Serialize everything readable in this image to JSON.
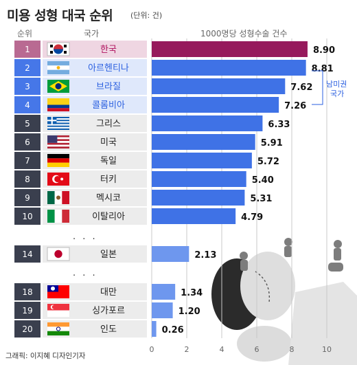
{
  "header": {
    "title": "미용 성형 대국 순위",
    "unit": "(단위: 건)",
    "col_rank": "순위",
    "col_country": "국가",
    "col_value": "1000명당 성형수술 건수"
  },
  "credit": "그래픽: 이지혜 디자인기자",
  "note": [
    "남미권",
    "국가"
  ],
  "ellipsis": "· · ·",
  "colors": {
    "highlight": "#961a5c",
    "bar": "#3f72e6",
    "bar_light": "#6e97ee",
    "rank_dark": "#3a3f4e",
    "rank_latam": "#4677e8",
    "rank_hl": "#b96a92"
  },
  "chart_data": {
    "type": "bar",
    "orientation": "horizontal",
    "xlim": [
      0,
      10
    ],
    "xticks": [
      0,
      2,
      4,
      6,
      8,
      10
    ],
    "rows": [
      {
        "rank": "1",
        "country": "한국",
        "value": 8.9,
        "label": "8.90",
        "flag": "flag-korea",
        "group": "highlight"
      },
      {
        "rank": "2",
        "country": "아르헨티나",
        "value": 8.81,
        "label": "8.81",
        "flag": "flag-argentina",
        "group": "latam"
      },
      {
        "rank": "3",
        "country": "브라질",
        "value": 7.62,
        "label": "7.62",
        "flag": "flag-brazil",
        "group": "latam"
      },
      {
        "rank": "4",
        "country": "콜롬비아",
        "value": 7.26,
        "label": "7.26",
        "flag": "flag-colombia",
        "group": "latam"
      },
      {
        "rank": "5",
        "country": "그리스",
        "value": 6.33,
        "label": "6.33",
        "flag": "flag-greece",
        "group": "other"
      },
      {
        "rank": "6",
        "country": "미국",
        "value": 5.91,
        "label": "5.91",
        "flag": "flag-usa",
        "group": "other"
      },
      {
        "rank": "7",
        "country": "독일",
        "value": 5.72,
        "label": "5.72",
        "flag": "flag-germany",
        "group": "other"
      },
      {
        "rank": "8",
        "country": "터키",
        "value": 5.4,
        "label": "5.40",
        "flag": "flag-turkey",
        "group": "other"
      },
      {
        "rank": "9",
        "country": "멕시코",
        "value": 5.31,
        "label": "5.31",
        "flag": "flag-mexico",
        "group": "other"
      },
      {
        "rank": "10",
        "country": "이탈리아",
        "value": 4.79,
        "label": "4.79",
        "flag": "flag-italy",
        "group": "other"
      },
      {
        "rank": "14",
        "country": "일본",
        "value": 2.13,
        "label": "2.13",
        "flag": "flag-japan",
        "group": "light"
      },
      {
        "rank": "18",
        "country": "대만",
        "value": 1.34,
        "label": "1.34",
        "flag": "flag-taiwan",
        "group": "light"
      },
      {
        "rank": "19",
        "country": "싱가포르",
        "value": 1.2,
        "label": "1.20",
        "flag": "flag-singapore",
        "group": "light"
      },
      {
        "rank": "20",
        "country": "인도",
        "value": 0.26,
        "label": "0.26",
        "flag": "flag-india",
        "group": "light"
      }
    ]
  }
}
